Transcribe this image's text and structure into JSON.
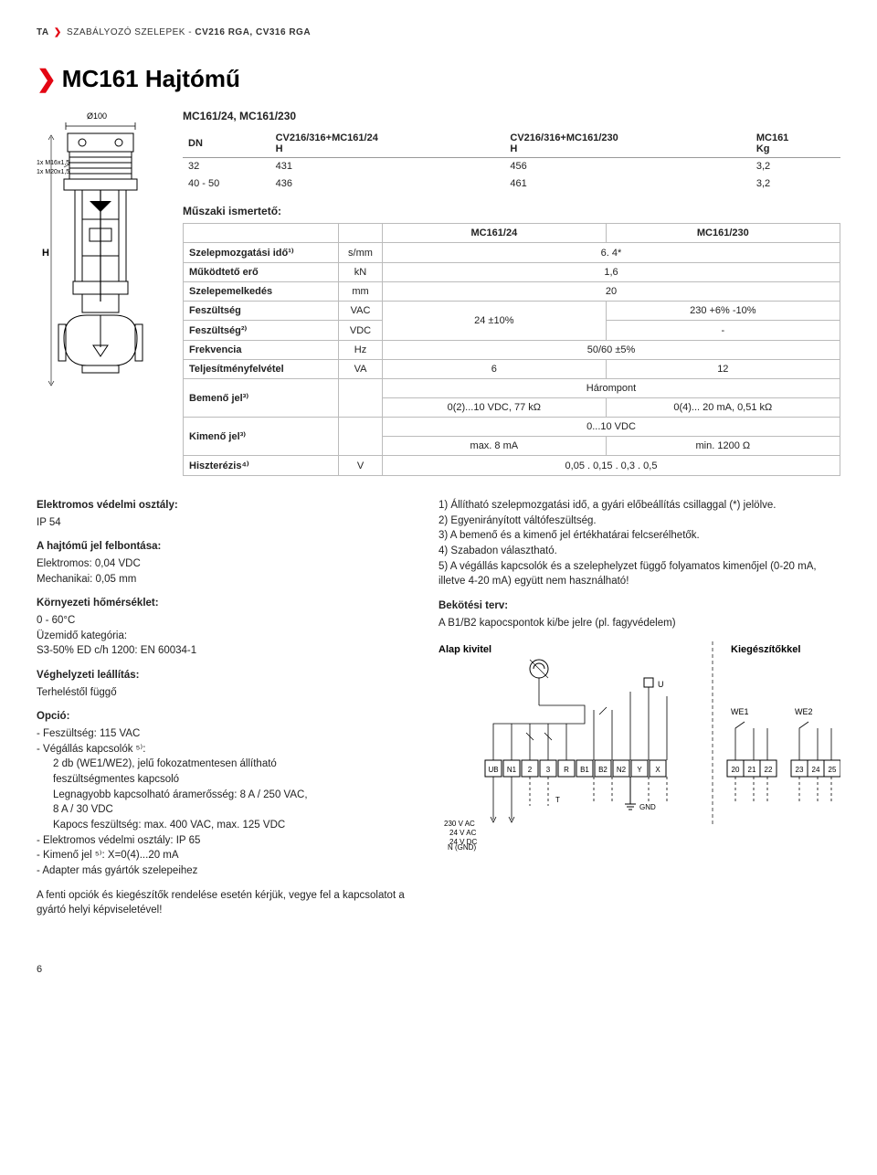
{
  "header": {
    "brand": "TA",
    "category_light": "SZABÁLYOZÓ SZELEPEK - ",
    "category_bold": "CV216 RGA, CV316 RGA"
  },
  "title": "MC161 Hajtómű",
  "variant_heading": "MC161/24, MC161/230",
  "figure": {
    "dia_label": "Ø100",
    "thread1": "1x M16x1,5",
    "thread2": "1x M20x1,5",
    "height_label": "H"
  },
  "dim_table": {
    "columns": [
      "DN",
      "CV216/316+MC161/24\nH",
      "CV216/316+MC161/230\nH",
      "MC161\nKg"
    ],
    "rows": [
      [
        "32",
        "431",
        "456",
        "3,2"
      ],
      [
        "40 - 50",
        "436",
        "461",
        "3,2"
      ]
    ]
  },
  "tech_heading": "Műszaki ismertető:",
  "spec_table": {
    "col_headers": [
      "",
      "",
      "MC161/24",
      "MC161/230"
    ],
    "rows": [
      {
        "label": "Szelepmozgatási idő¹⁾",
        "unit": "s/mm",
        "a": "6. 4*",
        "span": true
      },
      {
        "label": "Működtető erő",
        "unit": "kN",
        "a": "1,6",
        "span": true
      },
      {
        "label": "Szelepemelkedés",
        "unit": "mm",
        "a": "20",
        "span": true
      },
      {
        "label": "Feszültség",
        "unit": "VAC",
        "a": "24 ±10%",
        "b": "230 +6% -10%",
        "rowspan_a": 2
      },
      {
        "label": "Feszültség²⁾",
        "unit": "VDC",
        "b": "-"
      },
      {
        "label": "Frekvencia",
        "unit": "Hz",
        "a": "50/60 ±5%",
        "span": true
      },
      {
        "label": "Teljesítményfelvétel",
        "unit": "VA",
        "a": "6",
        "b": "12"
      },
      {
        "label": "Bemenő jel³⁾",
        "unit": "",
        "a_top": "Hárompont",
        "a": "0(2)...10 VDC, 77 kΩ",
        "b": "0(4)... 20 mA, 0,51 kΩ",
        "twoRow": true
      },
      {
        "label": "Kimenő jel³⁾",
        "unit": "",
        "a_top": "0...10 VDC",
        "a": "max. 8 mA",
        "b": "min. 1200 Ω",
        "twoRow": true
      },
      {
        "label": "Hiszterézis⁴⁾",
        "unit": "V",
        "a": "0,05 . 0,15 . 0,3 . 0,5",
        "span": true
      }
    ]
  },
  "left_col": {
    "s1_title": "Elektromos védelmi osztály:",
    "s1_body": "IP 54",
    "s2_title": "A hajtómű jel felbontása:",
    "s2_l1": "Elektromos: 0,04 VDC",
    "s2_l2": "Mechanikai: 0,05 mm",
    "s3_title": "Környezeti hőmérséklet:",
    "s3_l1": "0 - 60°C",
    "s3_l2": "Üzemidő kategória:",
    "s3_l3": "S3-50% ED c/h 1200: EN 60034-1",
    "s4_title": "Véghelyzeti leállítás:",
    "s4_body": "Terheléstől függő",
    "s5_title": "Opció:",
    "s5_lines": [
      "- Feszültség: 115 VAC",
      "- Végállás kapcsolók ⁵⁾:",
      "    2 db (WE1/WE2), jelű fokozatmentesen állítható",
      "    feszültségmentes kapcsoló",
      "    Legnagyobb kapcsolható áramerősség: 8 A / 250 VAC,",
      "    8 A / 30 VDC",
      "    Kapocs feszültség: max. 400 VAC, max. 125 VDC",
      "- Elektromos védelmi osztály: IP 65",
      "- Kimenő jel ⁵⁾: X=0(4)...20 mA",
      "- Adapter más gyártók szelepeihez"
    ],
    "s6_body": "A fenti opciók és kiegészítők rendelése esetén kérjük, vegye fel a kapcsolatot a gyártó helyi képviseletével!"
  },
  "right_col": {
    "notes": [
      "1) Állítható szelepmozgatási idő, a gyári előbeállítás csillaggal (*) jelölve.",
      "2) Egyenirányított váltófeszültség.",
      "3) A bemenő és a kimenő jel értékhatárai felcserélhetők.",
      "4) Szabadon választható.",
      "5) A végállás kapcsolók és a szelephelyzet függő folyamatos kimenőjel (0-20 mA, illetve 4-20 mA) együtt nem használható!"
    ],
    "s1_title": "Bekötési terv:",
    "s1_body": "A B1/B2 kapocspontok ki/be jelre (pl. fagyvédelem)",
    "wiring_left_title": "Alap kivitel",
    "wiring_right_title": "Kiegészítőkkel",
    "terminals_left": [
      "UB",
      "N1",
      "2",
      "3",
      "R",
      "B1",
      "B2",
      "N2",
      "Y",
      "X"
    ],
    "terminals_right1": [
      "20",
      "21",
      "22"
    ],
    "terminals_right2": [
      "23",
      "24",
      "25"
    ],
    "we1": "WE1",
    "we2": "WE2",
    "u": "U",
    "gnd": "GND",
    "t_label": "T",
    "supply": [
      "230 V AC",
      "24 V AC",
      "24 V DC",
      "N (GND)"
    ]
  },
  "page_number": "6",
  "colors": {
    "accent": "#e30613",
    "border": "#bbbbbb"
  }
}
